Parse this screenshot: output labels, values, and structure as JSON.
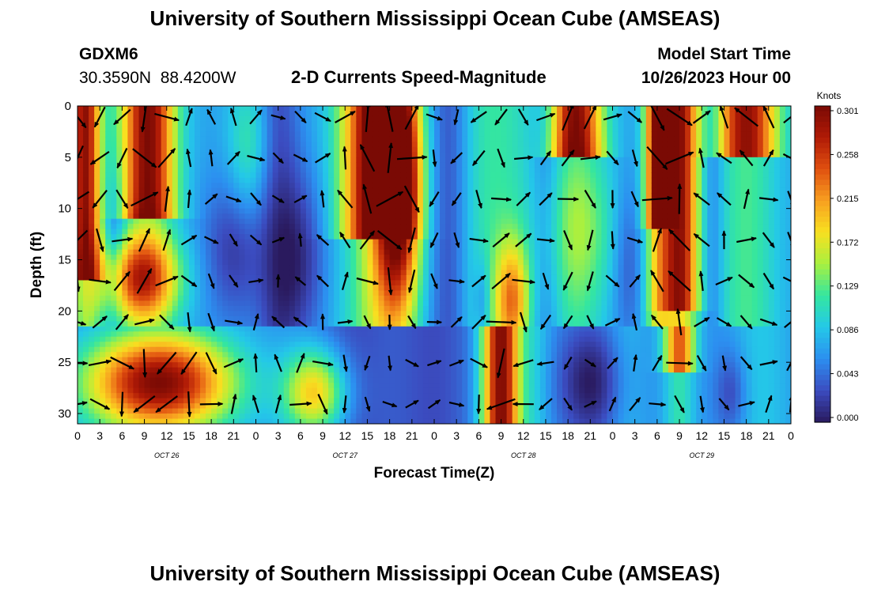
{
  "page": {
    "title": "University of Southern Mississippi Ocean Cube (AMSEAS)",
    "footer_title": "University of Southern Mississippi Ocean Cube (AMSEAS)",
    "station_name": "GDXM6",
    "station_lat": "30.3590N",
    "station_lon": "88.4200W",
    "model_start_label": "Model Start Time",
    "model_start_value": "10/26/2023 Hour 00"
  },
  "chart_data": {
    "type": "heatmap",
    "title": "2-D Currents Speed-Magnitude",
    "xlabel": "Forecast Time(Z)",
    "ylabel": "Depth (ft)",
    "x_ticks": [
      "0",
      "3",
      "6",
      "9",
      "12",
      "15",
      "18",
      "21",
      "0",
      "3",
      "6",
      "9",
      "12",
      "15",
      "18",
      "21",
      "0",
      "3",
      "6",
      "9",
      "12",
      "15",
      "18",
      "21",
      "0",
      "3",
      "6",
      "9",
      "12",
      "15",
      "18",
      "21",
      "0"
    ],
    "x_range_hours": [
      0,
      96
    ],
    "date_labels": [
      {
        "label": "OCT 26",
        "hour": 12
      },
      {
        "label": "OCT 27",
        "hour": 36
      },
      {
        "label": "OCT 28",
        "hour": 60
      },
      {
        "label": "OCT 29",
        "hour": 84
      }
    ],
    "y_ticks": [
      "0",
      "5",
      "10",
      "15",
      "20",
      "25",
      "30"
    ],
    "ylim": [
      0,
      31
    ],
    "y_inverted": true,
    "colorbar": {
      "unit": "Knots",
      "min": 0.0,
      "max": 0.301,
      "tick_labels": [
        "0.301",
        "0.258",
        "0.215",
        "0.172",
        "0.129",
        "0.086",
        "0.043",
        "0.000"
      ],
      "colors": [
        "#2a1a5e",
        "#3b4cc0",
        "#2c8ff0",
        "#24c8e8",
        "#34e6a0",
        "#a8f040",
        "#f8e020",
        "#f8a020",
        "#e05010",
        "#b01a06",
        "#7a0a04"
      ]
    },
    "arrows": "current direction vectors drawn every 3 hours at depth levels 0-30 ft",
    "series": [
      {
        "values_hint": "speed field in knots over forecast hour x depth"
      }
    ]
  }
}
